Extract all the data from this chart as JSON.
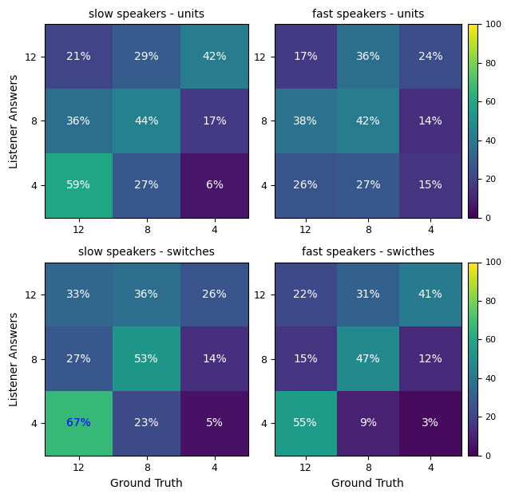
{
  "titles": [
    "slow speakers - units",
    "fast speakers - units",
    "slow speakers - switches",
    "fast speakers - swicthes"
  ],
  "matrices": [
    [
      [
        21,
        29,
        42
      ],
      [
        36,
        44,
        17
      ],
      [
        59,
        27,
        6
      ]
    ],
    [
      [
        17,
        36,
        24
      ],
      [
        38,
        42,
        14
      ],
      [
        26,
        27,
        15
      ]
    ],
    [
      [
        33,
        36,
        26
      ],
      [
        27,
        53,
        14
      ],
      [
        67,
        23,
        5
      ]
    ],
    [
      [
        22,
        31,
        41
      ],
      [
        15,
        47,
        12
      ],
      [
        55,
        9,
        3
      ]
    ]
  ],
  "tick_labels": [
    "12",
    "8",
    "4"
  ],
  "xlabel": "Ground Truth",
  "ylabel": "Listener Answers",
  "colormap": "viridis",
  "vmin": 0,
  "vmax": 100,
  "figsize": [
    6.4,
    6.24
  ],
  "dpi": 100,
  "title_fontsize": 10,
  "label_fontsize": 10,
  "tick_fontsize": 9,
  "annot_fontsize": 10,
  "special_text": {
    "idx": 2,
    "row": 2,
    "col": 0,
    "color": "blue"
  }
}
